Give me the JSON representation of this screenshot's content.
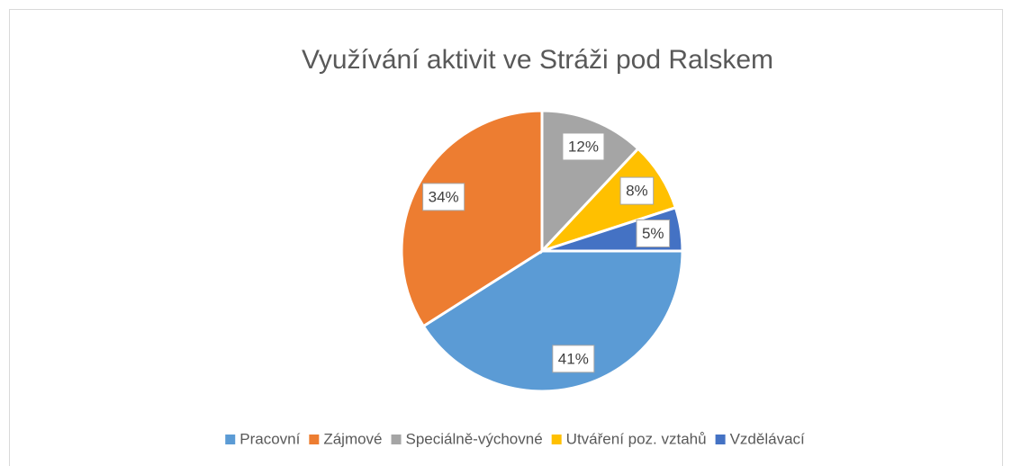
{
  "chart_data": {
    "type": "pie",
    "title": "Využívání aktivit ve Stráži pod Ralskem",
    "categories": [
      "Pracovní",
      "Zájmové",
      "Speciálně-výchovné",
      "Utváření poz. vztahů",
      "Vzdělávací"
    ],
    "values": [
      41,
      34,
      12,
      8,
      5
    ],
    "value_labels": [
      "41%",
      "34%",
      "12%",
      "8%",
      "5%"
    ],
    "colors": [
      "#5b9bd5",
      "#ed7d31",
      "#a5a5a5",
      "#ffc000",
      "#4472c4"
    ],
    "legend": "bottom"
  }
}
